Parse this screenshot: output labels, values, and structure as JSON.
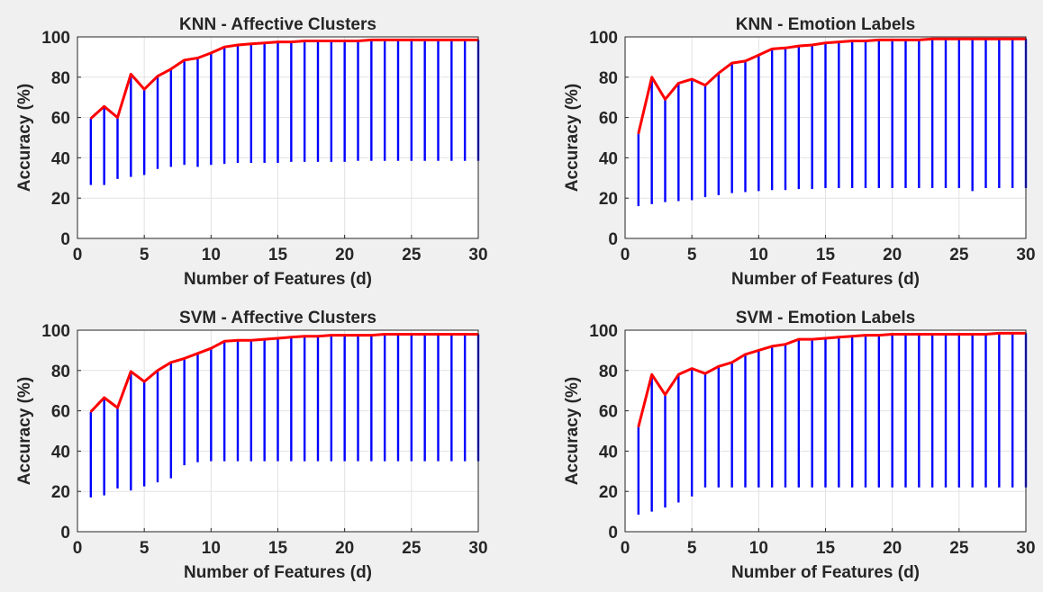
{
  "chart_data": [
    {
      "type": "line",
      "title": "KNN - Affective Clusters",
      "xlabel": "Number of Features (d)",
      "ylabel": "Accuracy (%)",
      "xlim": [
        0,
        30
      ],
      "ylim": [
        0,
        100
      ],
      "xticks": [
        "0",
        "5",
        "10",
        "15",
        "20",
        "25",
        "30"
      ],
      "yticks": [
        "0",
        "20",
        "40",
        "60",
        "80",
        "100"
      ],
      "grid": true,
      "x": [
        1,
        2,
        3,
        4,
        5,
        6,
        7,
        8,
        9,
        10,
        11,
        12,
        13,
        14,
        15,
        16,
        17,
        18,
        19,
        20,
        21,
        22,
        23,
        24,
        25,
        26,
        27,
        28,
        29,
        30
      ],
      "series": [
        {
          "kind": "max-line",
          "color": "#ff0000",
          "values": [
            59.5,
            65.5,
            60,
            81.5,
            74,
            80.5,
            84,
            88.5,
            89.5,
            92,
            95,
            96,
            96.5,
            97,
            97.5,
            97.5,
            98,
            98,
            98,
            98,
            98,
            98.5,
            98.5,
            98.5,
            98.5,
            98.5,
            98.5,
            98.5,
            98.5,
            98.5
          ]
        },
        {
          "kind": "range",
          "color": "#0000ff",
          "low": [
            26.5,
            26.5,
            29.5,
            30.5,
            31.5,
            34.5,
            35.5,
            36.5,
            35.5,
            36.5,
            37,
            37.5,
            37.5,
            37.5,
            37.5,
            38,
            38,
            38,
            38,
            38,
            38.5,
            38.5,
            38.5,
            38.5,
            38.5,
            38.5,
            38.5,
            38.5,
            38.5,
            38.5
          ],
          "high": [
            59.5,
            65.5,
            60,
            81.5,
            74,
            80.5,
            84,
            88.5,
            89.5,
            92,
            95,
            96,
            96.5,
            97,
            97.5,
            97.5,
            98,
            98,
            98,
            98,
            98,
            98.5,
            98.5,
            98.5,
            98.5,
            98.5,
            98.5,
            98.5,
            98.5,
            98.5
          ]
        }
      ]
    },
    {
      "type": "line",
      "title": "KNN - Emotion Labels",
      "xlabel": "Number of Features (d)",
      "ylabel": "Accuracy (%)",
      "xlim": [
        0,
        30
      ],
      "ylim": [
        0,
        100
      ],
      "xticks": [
        "0",
        "5",
        "10",
        "15",
        "20",
        "25",
        "30"
      ],
      "yticks": [
        "0",
        "20",
        "40",
        "60",
        "80",
        "100"
      ],
      "grid": true,
      "x": [
        1,
        2,
        3,
        4,
        5,
        6,
        7,
        8,
        9,
        10,
        11,
        12,
        13,
        14,
        15,
        16,
        17,
        18,
        19,
        20,
        21,
        22,
        23,
        24,
        25,
        26,
        27,
        28,
        29,
        30
      ],
      "series": [
        {
          "kind": "max-line",
          "color": "#ff0000",
          "values": [
            52,
            80,
            69,
            77,
            79,
            76,
            82,
            87,
            88,
            91,
            94,
            94.5,
            95.5,
            96,
            97,
            97.5,
            98,
            98,
            98.5,
            98.5,
            98.5,
            98.5,
            99,
            99,
            99,
            99,
            99,
            99,
            99,
            99
          ]
        },
        {
          "kind": "range",
          "color": "#0000ff",
          "low": [
            16,
            17,
            18,
            18.5,
            19,
            20.5,
            21.5,
            22.5,
            23,
            23.5,
            24,
            24,
            24.5,
            24.5,
            25,
            25,
            25,
            25,
            25,
            25,
            25,
            25,
            25,
            25,
            25,
            23.5,
            25,
            25,
            25,
            25
          ],
          "high": [
            52,
            80,
            69,
            77,
            79,
            76,
            82,
            87,
            88,
            91,
            94,
            94.5,
            95.5,
            96,
            97,
            97.5,
            98,
            98,
            98.5,
            98.5,
            98.5,
            98.5,
            99,
            99,
            99,
            99,
            99,
            99,
            99,
            99
          ]
        }
      ]
    },
    {
      "type": "line",
      "title": "SVM - Affective Clusters",
      "xlabel": "Number of Features (d)",
      "ylabel": "Accuracy (%)",
      "xlim": [
        0,
        30
      ],
      "ylim": [
        0,
        100
      ],
      "xticks": [
        "0",
        "5",
        "10",
        "15",
        "20",
        "25",
        "30"
      ],
      "yticks": [
        "0",
        "20",
        "40",
        "60",
        "80",
        "100"
      ],
      "grid": true,
      "x": [
        1,
        2,
        3,
        4,
        5,
        6,
        7,
        8,
        9,
        10,
        11,
        12,
        13,
        14,
        15,
        16,
        17,
        18,
        19,
        20,
        21,
        22,
        23,
        24,
        25,
        26,
        27,
        28,
        29,
        30
      ],
      "series": [
        {
          "kind": "max-line",
          "color": "#ff0000",
          "values": [
            59.5,
            66.5,
            61.5,
            79.5,
            74.5,
            80,
            84,
            86,
            88.5,
            91,
            94.5,
            95,
            95,
            95.5,
            96,
            96.5,
            97,
            97,
            97.5,
            97.5,
            97.5,
            97.5,
            98,
            98,
            98,
            98,
            98,
            98,
            98,
            98
          ]
        },
        {
          "kind": "range",
          "color": "#0000ff",
          "low": [
            17,
            18,
            21.5,
            20.5,
            22.5,
            24.5,
            26.5,
            33,
            34.5,
            35,
            35,
            35,
            35,
            35,
            35,
            35,
            35,
            35,
            35,
            35,
            35,
            35,
            35,
            35,
            35,
            35,
            35,
            35,
            35,
            35
          ],
          "high": [
            59.5,
            66.5,
            61.5,
            79.5,
            74.5,
            80,
            84,
            86,
            88.5,
            91,
            94.5,
            95,
            95,
            95.5,
            96,
            96.5,
            97,
            97,
            97.5,
            97.5,
            97.5,
            97.5,
            98,
            98,
            98,
            98,
            98,
            98,
            98,
            98
          ]
        }
      ]
    },
    {
      "type": "line",
      "title": "SVM - Emotion Labels",
      "xlabel": "Number of Features (d)",
      "ylabel": "Accuracy (%)",
      "xlim": [
        0,
        30
      ],
      "ylim": [
        0,
        100
      ],
      "xticks": [
        "0",
        "5",
        "10",
        "15",
        "20",
        "25",
        "30"
      ],
      "yticks": [
        "0",
        "20",
        "40",
        "60",
        "80",
        "100"
      ],
      "grid": true,
      "x": [
        1,
        2,
        3,
        4,
        5,
        6,
        7,
        8,
        9,
        10,
        11,
        12,
        13,
        14,
        15,
        16,
        17,
        18,
        19,
        20,
        21,
        22,
        23,
        24,
        25,
        26,
        27,
        28,
        29,
        30
      ],
      "series": [
        {
          "kind": "max-line",
          "color": "#ff0000",
          "values": [
            52,
            78,
            68,
            78,
            81,
            78.5,
            82,
            84,
            88,
            90,
            92,
            93,
            95.5,
            95.5,
            96,
            96.5,
            97,
            97.5,
            97.5,
            98,
            98,
            98,
            98,
            98,
            98,
            98,
            98,
            98.5,
            98.5,
            98.5
          ]
        },
        {
          "kind": "range",
          "color": "#0000ff",
          "low": [
            8.5,
            10,
            12,
            14.5,
            17.5,
            22,
            22,
            22,
            22,
            22,
            22,
            22,
            22,
            22,
            22,
            22,
            22,
            22,
            22,
            22,
            22,
            22,
            22,
            22,
            22,
            22,
            22,
            22,
            22,
            22
          ],
          "high": [
            52,
            78,
            68,
            78,
            81,
            78.5,
            82,
            84,
            88,
            90,
            92,
            93,
            95.5,
            95.5,
            96,
            96.5,
            97,
            97.5,
            97.5,
            98,
            98,
            98,
            98,
            98,
            98,
            98,
            98,
            98.5,
            98.5,
            98.5
          ]
        }
      ]
    }
  ]
}
